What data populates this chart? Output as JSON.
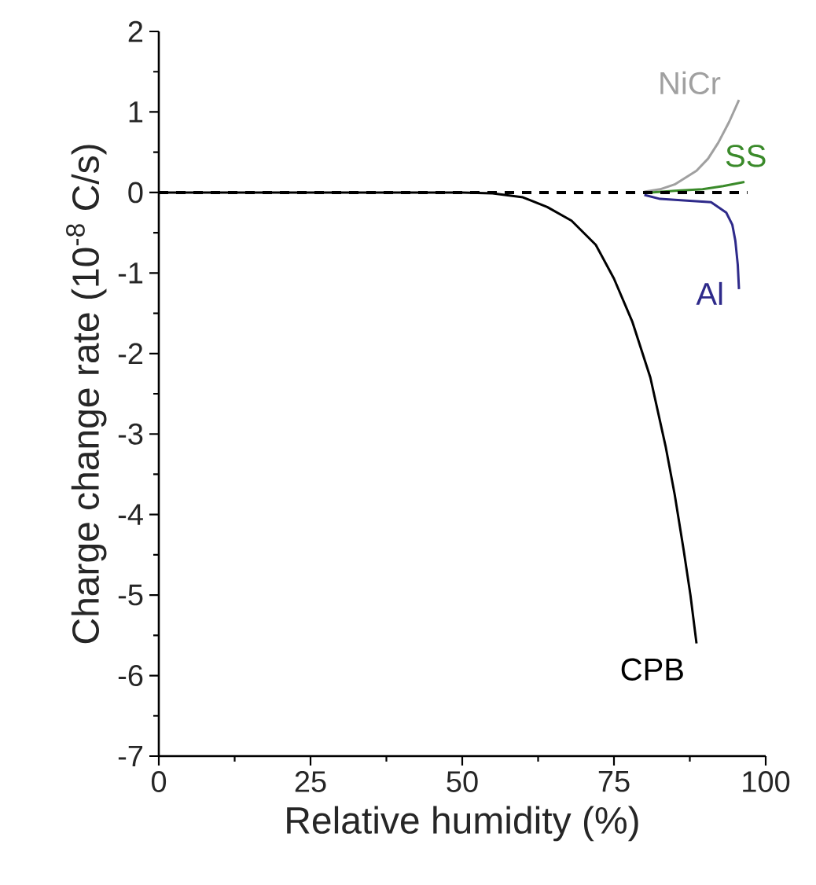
{
  "chart_data": {
    "type": "line",
    "xlabel": "Relative humidity (%)",
    "ylabel": "Charge change rate (10$^{-8}$ C/s)",
    "xlim": [
      0,
      100
    ],
    "ylim": [
      -7,
      2
    ],
    "xticks": [
      0,
      25,
      50,
      75,
      100
    ],
    "yticks": [
      -7,
      -6,
      -5,
      -4,
      -3,
      -2,
      -1,
      0,
      1,
      2
    ],
    "grid": false,
    "legend": false,
    "line_style": "solid",
    "marker": "none",
    "series": [
      {
        "name": "NiCr",
        "color": "#a0a0a0",
        "x": [
          80,
          82.6,
          85,
          88.6,
          90.5,
          92.2,
          94,
          95.6
        ],
        "values": [
          0.01,
          0.04,
          0.1,
          0.27,
          0.42,
          0.62,
          0.88,
          1.15
        ]
      },
      {
        "name": "SS",
        "color": "#3a8a2a",
        "x": [
          81,
          85,
          89.6,
          93,
          96.5
        ],
        "values": [
          0,
          0.02,
          0.04,
          0.08,
          0.13
        ]
      },
      {
        "name": "Al",
        "color": "#2e2a8a",
        "x": [
          80,
          82.6,
          87,
          91,
          93.5,
          94.5,
          95,
          95.4,
          95.6
        ],
        "values": [
          -0.03,
          -0.08,
          -0.1,
          -0.12,
          -0.25,
          -0.4,
          -0.6,
          -0.9,
          -1.2
        ]
      },
      {
        "name": "CPB",
        "color": "#000000",
        "x": [
          0,
          50,
          55,
          60,
          64,
          68,
          72,
          75,
          78,
          81,
          83.5,
          85,
          86.5,
          87.6,
          88.6
        ],
        "values": [
          0,
          0,
          -0.01,
          -0.06,
          -0.18,
          -0.35,
          -0.65,
          -1.07,
          -1.6,
          -2.3,
          -3.15,
          -3.75,
          -4.45,
          -5.0,
          -5.6
        ]
      }
    ],
    "ref_lines": [
      {
        "axis": "y",
        "value": 0,
        "color": "#000000",
        "line_style": "dashed"
      }
    ]
  }
}
